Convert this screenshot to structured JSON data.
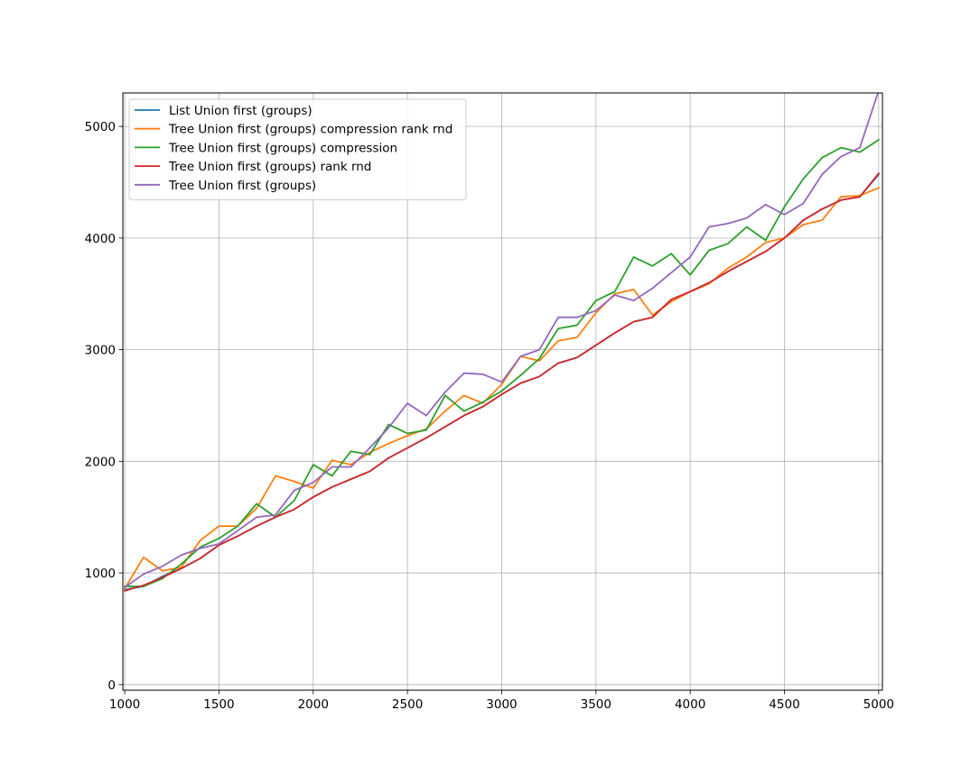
{
  "chart_data": {
    "type": "line",
    "title": "",
    "xlabel": "",
    "ylabel": "",
    "xlim": [
      990,
      5020
    ],
    "ylim": [
      -50,
      5300
    ],
    "grid": true,
    "legend_position": "top-left",
    "xticks": [
      1000,
      1500,
      2000,
      2500,
      3000,
      3500,
      4000,
      4500,
      5000
    ],
    "yticks": [
      0,
      1000,
      2000,
      3000,
      4000,
      5000
    ],
    "x": [
      1000,
      1100,
      1200,
      1300,
      1400,
      1500,
      1600,
      1700,
      1800,
      1900,
      2000,
      2100,
      2200,
      2300,
      2400,
      2500,
      2600,
      2700,
      2800,
      2900,
      3000,
      3100,
      3200,
      3300,
      3400,
      3500,
      3600,
      3700,
      3800,
      3900,
      4000,
      4100,
      4200,
      4300,
      4400,
      4500,
      4600,
      4700,
      4800,
      4900,
      5000
    ],
    "series": [
      {
        "name": "List Union first (groups)",
        "color": "#1f77b4",
        "values": [
          850,
          880,
          970,
          1040,
          1130,
          1250,
          1330,
          1420,
          1500,
          1570,
          1680,
          1770,
          1840,
          1910,
          2030,
          2120,
          2210,
          2310,
          2410,
          2490,
          2600,
          2700,
          2760,
          2880,
          2930,
          3040,
          3150,
          3250,
          3290,
          3450,
          3520,
          3600,
          3700,
          3790,
          3880,
          4000,
          4160,
          4260,
          4340,
          4370,
          4570
        ]
      },
      {
        "name": "Tree Union first (groups) compression rank rnd",
        "color": "#ff7f0e",
        "values": [
          860,
          1140,
          1020,
          1050,
          1290,
          1420,
          1420,
          1580,
          1870,
          1820,
          1760,
          2010,
          1970,
          2080,
          2160,
          2230,
          2290,
          2450,
          2590,
          2520,
          2690,
          2940,
          2900,
          3080,
          3110,
          3330,
          3500,
          3540,
          3310,
          3430,
          3520,
          3590,
          3730,
          3830,
          3960,
          4000,
          4120,
          4160,
          4370,
          4380,
          4450
        ]
      },
      {
        "name": "Tree Union first (groups) compression",
        "color": "#2ca02c",
        "values": [
          880,
          880,
          950,
          1080,
          1230,
          1310,
          1420,
          1620,
          1500,
          1650,
          1970,
          1870,
          2090,
          2060,
          2330,
          2250,
          2280,
          2590,
          2450,
          2530,
          2630,
          2770,
          2920,
          3190,
          3220,
          3440,
          3520,
          3830,
          3750,
          3860,
          3670,
          3890,
          3950,
          4100,
          3980,
          4280,
          4530,
          4720,
          4810,
          4770,
          4880
        ]
      },
      {
        "name": "Tree Union first (groups) rank rnd",
        "color": "#d62728",
        "values": [
          840,
          890,
          960,
          1040,
          1130,
          1250,
          1330,
          1420,
          1500,
          1570,
          1680,
          1770,
          1840,
          1910,
          2030,
          2120,
          2210,
          2310,
          2410,
          2490,
          2600,
          2700,
          2760,
          2880,
          2930,
          3040,
          3150,
          3250,
          3290,
          3450,
          3520,
          3600,
          3700,
          3790,
          3880,
          4000,
          4160,
          4260,
          4340,
          4370,
          4580
        ]
      },
      {
        "name": "Tree Union first (groups)",
        "color": "#9467bd",
        "values": [
          870,
          990,
          1060,
          1160,
          1220,
          1260,
          1380,
          1500,
          1520,
          1740,
          1810,
          1950,
          1950,
          2120,
          2300,
          2520,
          2410,
          2620,
          2790,
          2780,
          2710,
          2940,
          3000,
          3290,
          3290,
          3350,
          3490,
          3440,
          3550,
          3690,
          3830,
          4100,
          4130,
          4180,
          4300,
          4210,
          4310,
          4570,
          4730,
          4810,
          5320
        ]
      }
    ]
  }
}
